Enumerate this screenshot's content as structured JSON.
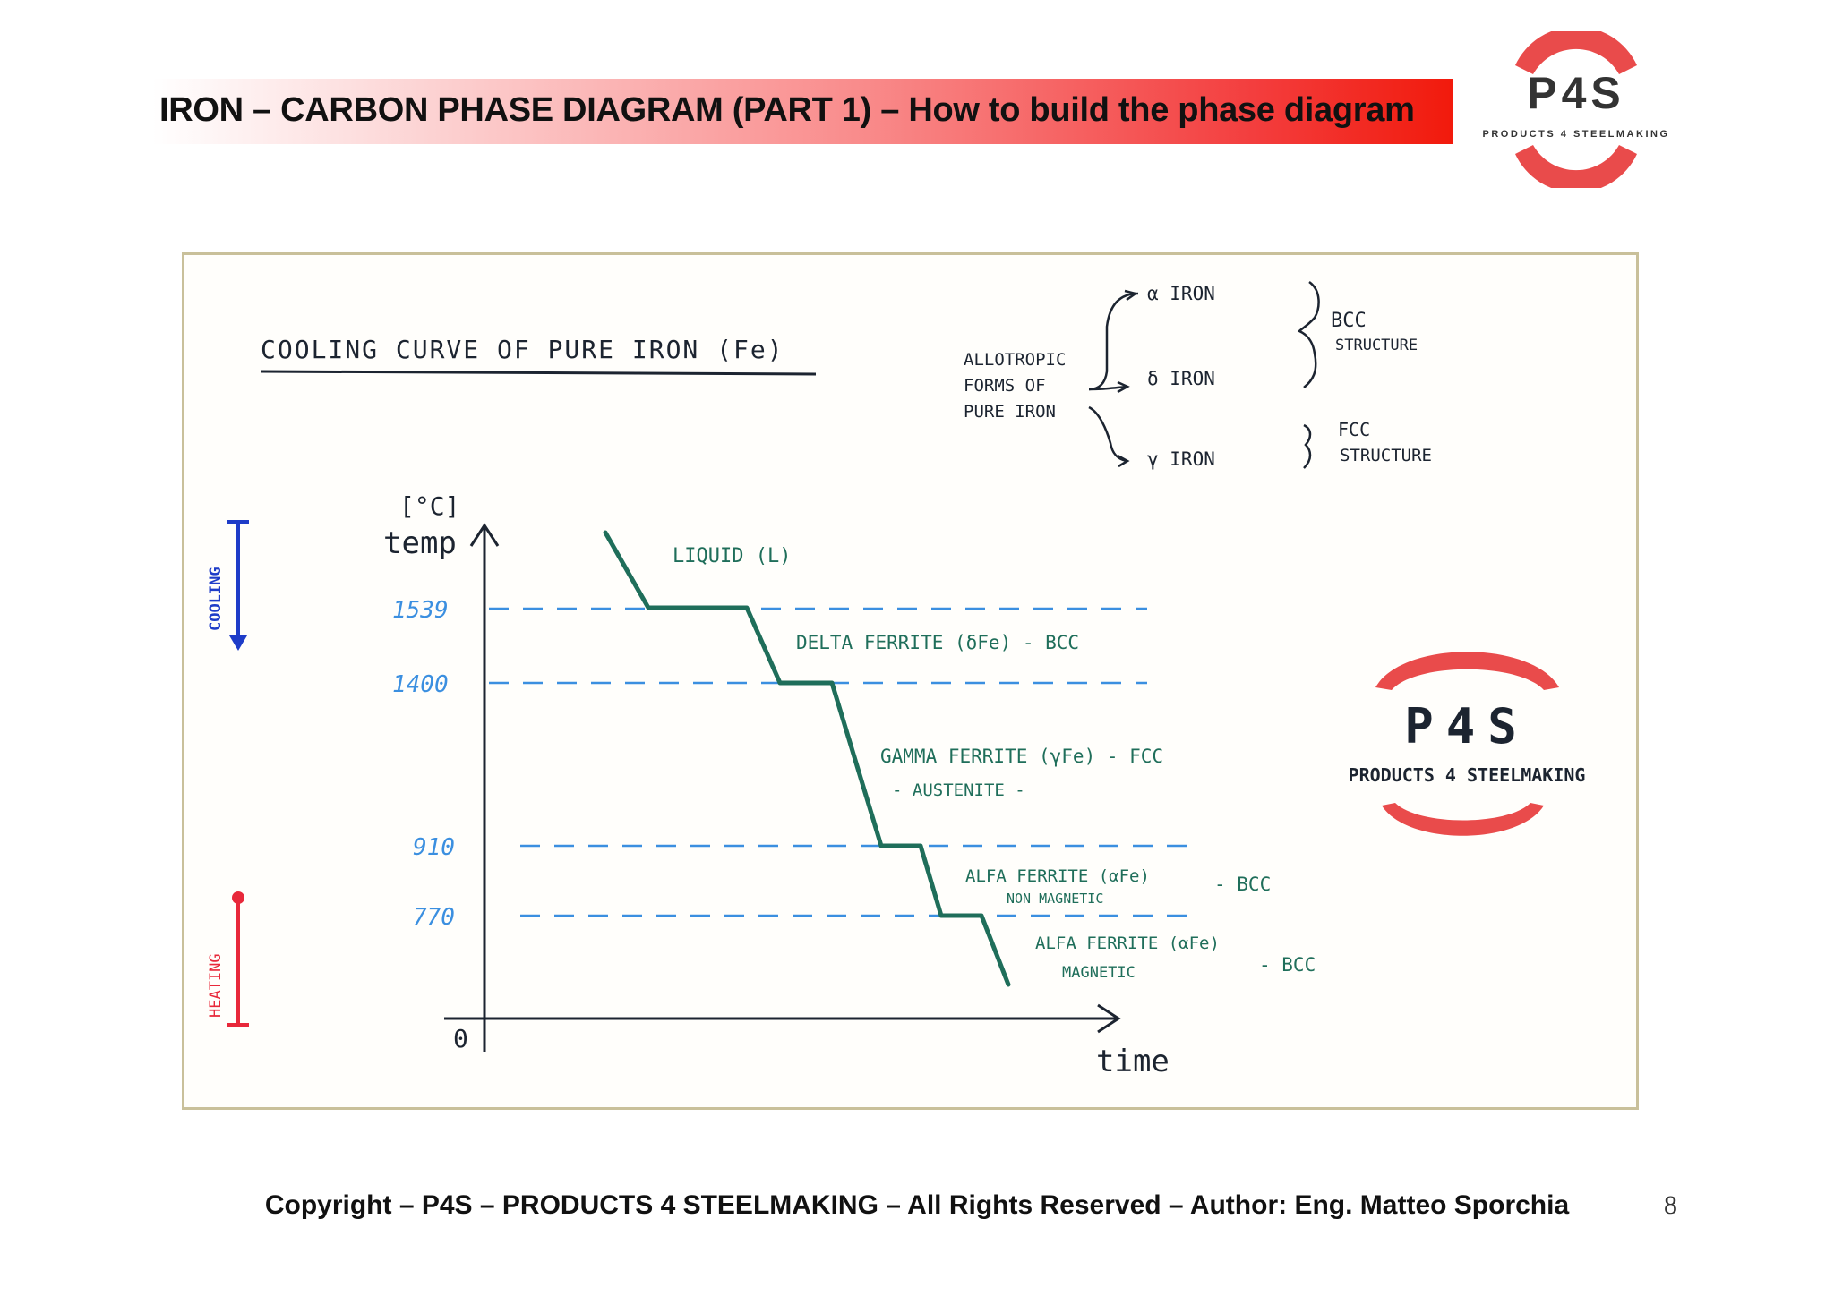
{
  "header": {
    "title": "IRON – CARBON PHASE DIAGRAM (PART 1) – How to build the phase diagram"
  },
  "logo": {
    "name": "P4S",
    "tagline": "PRODUCTS 4 STEELMAKING",
    "accent_color": "#e94b4b"
  },
  "figure": {
    "heading": "COOLING CURVE OF PURE IRON (Fe)",
    "allotropic": {
      "label_lines": [
        "ALLOTROPIC",
        "FORMS OF",
        "PURE IRON"
      ],
      "forms": [
        "α IRON",
        "δ IRON",
        "γ IRON"
      ],
      "bcc_lines": [
        "BCC",
        "STRUCTURE"
      ],
      "fcc_lines": [
        "FCC",
        "STRUCTURE"
      ]
    },
    "side_arrows": {
      "cooling": "COOLING",
      "heating": "HEATING"
    },
    "axis": {
      "unit": "[°C]",
      "y_label": "temp",
      "x_label": "time",
      "origin": "0"
    },
    "temperatures": [
      "1539",
      "1400",
      "910",
      "770"
    ],
    "phases": {
      "liquid": "LIQUID (L)",
      "delta": "DELTA FERRITE  (δFe)  -  BCC",
      "gamma_1": "GAMMA FERRITE  (γFe)  -  FCC",
      "gamma_2": "- AUSTENITE -",
      "alpha_nm_1": "ALFA FERRITE  (αFe)",
      "alpha_nm_2": "NON MAGNETIC",
      "alpha_nm_3": "- BCC",
      "alpha_m_1": "ALFA FERRITE  (αFe)",
      "alpha_m_2": "MAGNETIC",
      "alpha_m_3": "- BCC"
    },
    "colors": {
      "curve": "#1f6e5a",
      "temps": "#3b8fe0",
      "cooling": "#1e3cc8",
      "heating": "#e8283a",
      "ink": "#1c2430"
    }
  },
  "footer": {
    "copyright": "Copyright – P4S – PRODUCTS 4 STEELMAKING – All Rights Reserved – Author: Eng. Matteo Sporchia",
    "page_number": "8"
  }
}
